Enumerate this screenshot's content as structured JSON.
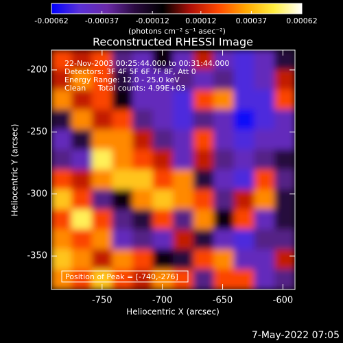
{
  "chart_data": {
    "type": "heatmap",
    "title": "Reconstructed RHESSI Image",
    "xlabel": "Heliocentric X (arcsec)",
    "ylabel": "Heliocentric Y (arcsec)",
    "annotations": [
      "22-Nov-2003 00:25:44.000 to 00:31:44.000",
      "Detectors: 3F 4F 5F 6F 7F 8F, Att 0",
      "Energy Range: 12.0 - 25.0 keV",
      "Clean     Total counts: 4.99E+03"
    ],
    "peak_label": "Position of Peak = [-740,-276]",
    "timestamp": "7-May-2022 07:05",
    "colorbar_label": "(photons cm⁻² s⁻¹ asec⁻²)",
    "clim": [
      -0.00062,
      0.00062
    ],
    "cticks": [
      -0.00062,
      -0.00037,
      -0.00012,
      0.00012,
      0.00037,
      0.00062
    ],
    "colorscale": [
      "#0000ff",
      "#5a30d8",
      "#6a2aa8",
      "#2a0a40",
      "#000000",
      "#b01008",
      "#ff4800",
      "#ffa800",
      "#ffee40",
      "#ffffff"
    ],
    "xlim": [
      -792,
      -590
    ],
    "ylim": [
      -377,
      -184
    ],
    "xticks": [
      -750,
      -700,
      -650,
      -600
    ],
    "yticks": [
      -200,
      -250,
      -300,
      -350
    ],
    "z": [
      [
        0.0002,
        0.0001,
        0.0002,
        -0.0003,
        -0.0004,
        -0.0001,
        -0.0004,
        0.0001,
        -0.0004,
        -0.0005,
        -0.0004,
        -0.0002
      ],
      [
        0.0001,
        0.0003,
        0.0002,
        -0.0002,
        -0.0004,
        -0.0004,
        -0.0003,
        -0.0004,
        -0.0003,
        -0.0005,
        -0.0004,
        0.0001
      ],
      [
        0.0003,
        0.0001,
        0.0002,
        -0.0001,
        -0.0004,
        -0.0004,
        -0.0005,
        0.0002,
        0.0003,
        -0.0005,
        -0.0005,
        0.0002
      ],
      [
        -0.0002,
        0.0003,
        0.0001,
        0.0002,
        -0.0003,
        -0.0004,
        -0.0005,
        -0.0003,
        -0.0004,
        -0.0006,
        -0.0005,
        -0.0004
      ],
      [
        -0.0004,
        -0.0002,
        0.0003,
        0.0003,
        0.0001,
        -0.0003,
        -0.0004,
        0.0002,
        -0.0004,
        -0.0005,
        -0.0004,
        -0.0004
      ],
      [
        -0.0003,
        -0.0004,
        0.0005,
        0.0003,
        0.0002,
        0.0001,
        -0.0004,
        0.0001,
        -0.0003,
        -0.0004,
        -0.0003,
        -0.0002
      ],
      [
        0.0002,
        0.0001,
        0.0003,
        0.0004,
        0.0004,
        0.0002,
        0.0003,
        -0.0002,
        -0.0004,
        -0.0005,
        0.0002,
        -0.0003
      ],
      [
        0.0004,
        0.0002,
        -0.0003,
        -0.0001,
        0.0003,
        0.0004,
        0.0003,
        0.0002,
        -0.0003,
        0.0001,
        0.0003,
        -0.0002
      ],
      [
        0.0002,
        0.0005,
        0.0002,
        -0.0003,
        -0.0002,
        0.0002,
        -0.0003,
        0.0003,
        -0.0001,
        0.0002,
        -0.0004,
        -0.0002
      ],
      [
        0.0003,
        0.0002,
        0.0003,
        -0.0004,
        -0.0003,
        -0.0004,
        0.0001,
        -0.0002,
        -0.0004,
        -0.0005,
        -0.0003,
        -0.0003
      ],
      [
        0.0004,
        0.0003,
        0.0001,
        0.0003,
        0.0002,
        -0.0001,
        -0.0002,
        0.0002,
        0.0003,
        -0.0004,
        -0.0004,
        0.0001
      ],
      [
        0.0003,
        0.0002,
        0.0004,
        0.0002,
        0.0001,
        0.0003,
        0.0002,
        -0.0003,
        0.0002,
        0.0002,
        -0.0004,
        -0.0003
      ]
    ]
  }
}
